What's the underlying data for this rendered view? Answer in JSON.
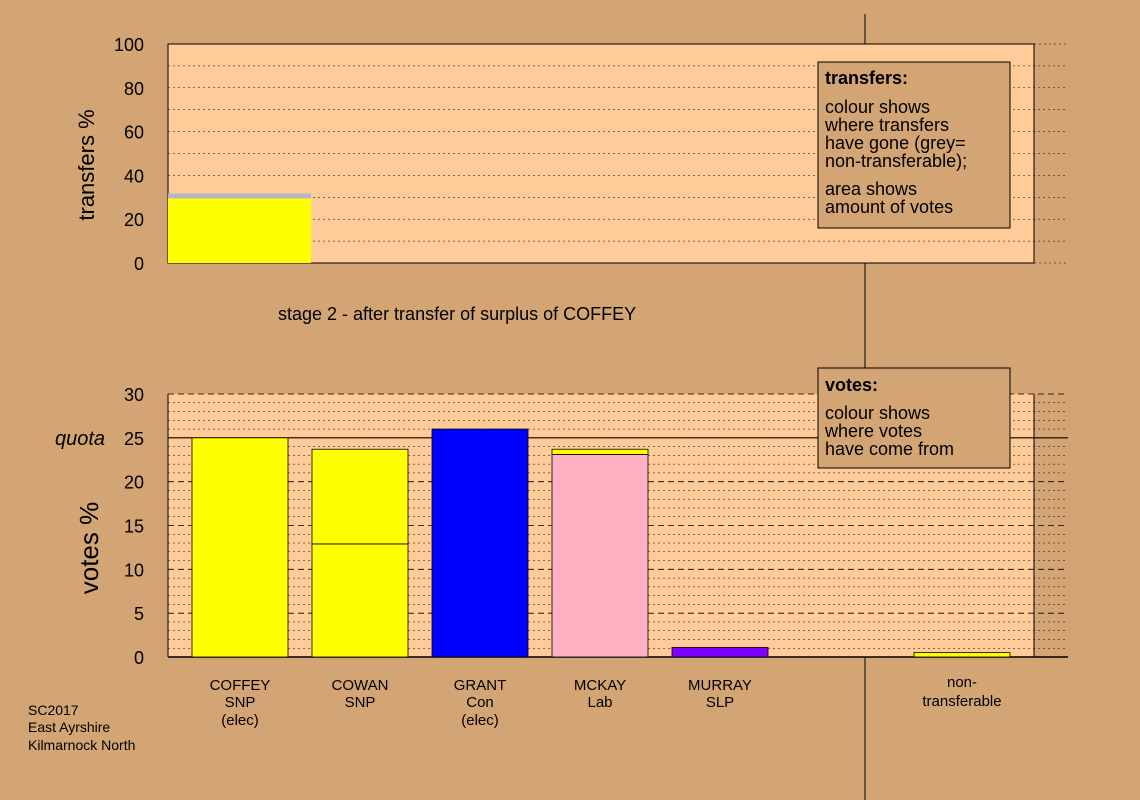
{
  "colors": {
    "background": "#d4a574",
    "plot_area": "#ffcc99",
    "legend_box": "#d4a574",
    "SNP": "#ffff00",
    "Con": "#0000ff",
    "Lab": "#ffb0c0",
    "SLP": "#8000ff",
    "non_transferable": "#aaaaaa",
    "transfer_grey_band": "#b4b4c8"
  },
  "chart_data": [
    {
      "type": "bar",
      "panel": "transfers",
      "title": "stage 2 - after transfer of surplus of COFFEY",
      "ylabel": "transfers %",
      "ylim": [
        0,
        100
      ],
      "yticks": [
        "0",
        "20",
        "40",
        "60",
        "80",
        "100"
      ],
      "grid": true,
      "bars": [
        {
          "segments": [
            {
              "value": 29.5,
              "color": "#ffff00"
            },
            {
              "value": 1.5,
              "color": "#b4b4c8"
            },
            {
              "value": 0.7,
              "color": "#b4b4c8"
            }
          ]
        }
      ],
      "legend": {
        "position": "top-right",
        "title": "transfers:",
        "lines": [
          "colour shows",
          "where transfers",
          "have gone (grey=",
          "non-transferable);",
          "area shows",
          "amount of votes"
        ]
      }
    },
    {
      "type": "bar",
      "panel": "votes",
      "stacked": true,
      "ylabel": "votes %",
      "ylim": [
        0,
        30
      ],
      "yticks": [
        "0",
        "5",
        "10",
        "15",
        "20",
        "25",
        "30"
      ],
      "quota": {
        "value": 25,
        "label": "quota"
      },
      "grid": true,
      "categories": [
        {
          "name": "COFFEY",
          "party": "SNP",
          "status": "(elec)",
          "segments": [
            {
              "value": 25.0,
              "color": "#ffff00"
            }
          ]
        },
        {
          "name": "COWAN",
          "party": "SNP",
          "status": "",
          "segments": [
            {
              "value": 12.9,
              "color": "#ffff00"
            },
            {
              "value": 10.8,
              "color": "#ffff00"
            }
          ]
        },
        {
          "name": "GRANT",
          "party": "Con",
          "status": "(elec)",
          "segments": [
            {
              "value": 26.0,
              "color": "#0000ff"
            }
          ]
        },
        {
          "name": "MCKAY",
          "party": "Lab",
          "status": "",
          "segments": [
            {
              "value": 23.1,
              "color": "#ffb0c0"
            },
            {
              "value": 0.6,
              "color": "#ffff00"
            }
          ]
        },
        {
          "name": "MURRAY",
          "party": "SLP",
          "status": "",
          "segments": [
            {
              "value": 1.1,
              "color": "#8000ff"
            }
          ]
        }
      ],
      "non_transferable": {
        "label_lines": [
          "non-",
          "transferable"
        ],
        "segments": [
          {
            "value": 0.5,
            "color": "#ffff00"
          }
        ]
      },
      "legend": {
        "position": "top-right",
        "title": "votes:",
        "lines": [
          "colour shows",
          "where votes",
          "have come from"
        ]
      }
    }
  ],
  "footer": {
    "lines": [
      "SC2017",
      "East Ayrshire",
      "Kilmarnock North"
    ]
  }
}
